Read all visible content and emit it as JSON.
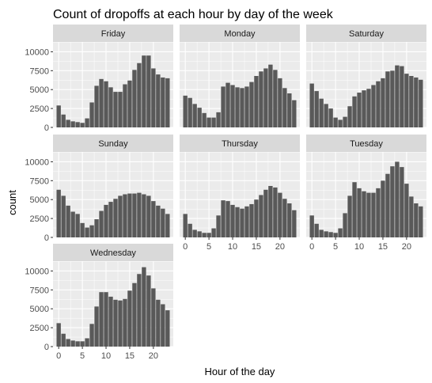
{
  "chart_data": {
    "type": "bar",
    "title": "Count of dropoffs at each hour by day of the week",
    "xlabel": "Hour of the day",
    "ylabel": "count",
    "x_ticks": [
      0,
      5,
      10,
      15,
      20
    ],
    "y_ticks": [
      0,
      2500,
      5000,
      7500,
      10000
    ],
    "y_tick_labels": [
      "0",
      "2500",
      "5000",
      "7500",
      "10000"
    ],
    "xlim": [
      -1.2,
      24.2
    ],
    "ylim": [
      0,
      11300
    ],
    "grid": true,
    "panel_background": "#ebebeb",
    "strip_background": "#d9d9d9",
    "bar_color": "#595959",
    "hours": [
      0,
      1,
      2,
      3,
      4,
      5,
      6,
      7,
      8,
      9,
      10,
      11,
      12,
      13,
      14,
      15,
      16,
      17,
      18,
      19,
      20,
      21,
      22,
      23
    ],
    "panels": [
      {
        "name": "Friday",
        "values": [
          2900,
          1700,
          1000,
          800,
          700,
          600,
          1200,
          3300,
          5500,
          6400,
          6100,
          5300,
          4700,
          4700,
          5700,
          6200,
          7600,
          8500,
          9500,
          9500,
          7800,
          7000,
          6600,
          6500
        ]
      },
      {
        "name": "Monday",
        "values": [
          4200,
          3900,
          3100,
          2600,
          1900,
          1300,
          1300,
          2000,
          5400,
          5900,
          5600,
          5300,
          5200,
          5400,
          6000,
          6800,
          7400,
          7800,
          8300,
          7600,
          6500,
          5200,
          4500,
          3600
        ]
      },
      {
        "name": "Saturday",
        "values": [
          5800,
          4800,
          3800,
          3100,
          2500,
          1300,
          1000,
          1400,
          2800,
          4100,
          4600,
          4900,
          5100,
          5600,
          6100,
          6500,
          7400,
          7500,
          8200,
          8100,
          7100,
          6800,
          6600,
          6300
        ]
      },
      {
        "name": "Sunday",
        "values": [
          6300,
          5500,
          4200,
          3400,
          3100,
          1900,
          1300,
          1600,
          2400,
          3500,
          4300,
          4700,
          5100,
          5500,
          5700,
          5800,
          5800,
          5900,
          5700,
          5500,
          4800,
          4200,
          3800,
          3100
        ]
      },
      {
        "name": "Thursday",
        "values": [
          3100,
          1800,
          1000,
          800,
          600,
          600,
          1200,
          2900,
          4900,
          4800,
          4300,
          4000,
          3800,
          4100,
          4400,
          5000,
          5600,
          6300,
          6800,
          6600,
          5900,
          5100,
          4500,
          3600
        ]
      },
      {
        "name": "Tuesday",
        "values": [
          2900,
          1800,
          1000,
          800,
          700,
          600,
          1200,
          3200,
          5500,
          7300,
          6500,
          6100,
          5900,
          5900,
          6500,
          7500,
          8400,
          9400,
          10000,
          9300,
          7100,
          5400,
          4500,
          4100
        ]
      },
      {
        "name": "Wednesday",
        "values": [
          3100,
          1700,
          1000,
          800,
          700,
          700,
          1100,
          3000,
          5300,
          7200,
          7200,
          6600,
          6200,
          6100,
          6300,
          7400,
          8400,
          9600,
          10500,
          9400,
          7700,
          6200,
          5600,
          4800
        ]
      }
    ]
  }
}
